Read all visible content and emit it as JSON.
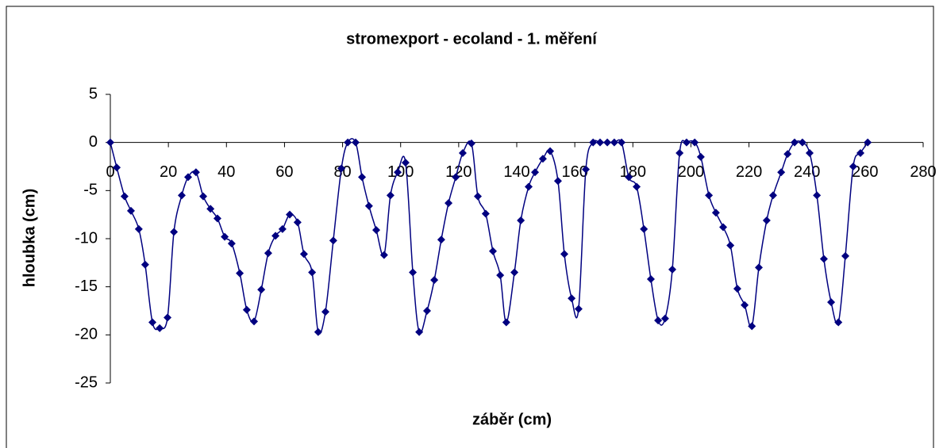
{
  "chart_data": {
    "type": "line",
    "title": "stromexport - ecoland - 1. měření",
    "x_label": "záběr (cm)",
    "y_label": "hloubka (cm)",
    "xlim": [
      0,
      280
    ],
    "xticks": [
      0,
      20,
      40,
      60,
      80,
      100,
      120,
      140,
      160,
      180,
      200,
      220,
      240,
      260,
      280
    ],
    "ylim": [
      -25,
      5
    ],
    "yticks": [
      -25,
      -20,
      -15,
      -10,
      -5,
      0,
      5
    ],
    "series": [
      {
        "color": "#000080",
        "x": [
          0,
          2.2,
          4.9,
          7.1,
          9.8,
          12,
          14.5,
          17,
          19.7,
          21.9,
          24.6,
          26.8,
          29.5,
          32,
          34.5,
          36.9,
          39.4,
          41.8,
          44.6,
          47,
          49.5,
          52,
          54.4,
          56.9,
          59.3,
          61.8,
          64.5,
          66.7,
          69.5,
          71.6,
          74.1,
          76.8,
          79.6,
          81.8,
          84.5,
          86.7,
          89.1,
          91.6,
          94.3,
          96.5,
          99,
          101.7,
          104.2,
          106.4,
          109.1,
          111.6,
          114,
          116.5,
          119,
          121.4,
          124.4,
          126.6,
          129.3,
          131.8,
          134.3,
          136.4,
          139.2,
          141.4,
          144.1,
          146.3,
          149,
          151.5,
          154.2,
          156.4,
          158.9,
          161.3,
          163.8,
          166.3,
          168.7,
          171.2,
          173.6,
          176.1,
          178.6,
          181.3,
          183.8,
          186.2,
          188.7,
          191.1,
          193.6,
          196.1,
          198.5,
          201.3,
          203.4,
          206.2,
          208.6,
          211.1,
          213.6,
          216,
          218.5,
          221,
          223.4,
          226.1,
          228.3,
          231.1,
          233.3,
          235.7,
          238.4,
          240.9,
          243.4,
          245.8,
          248.3,
          250.8,
          253.2,
          255.9,
          258.4,
          260.9
        ],
        "values": [
          0,
          -2.6,
          -5.6,
          -7.1,
          -9.0,
          -12.7,
          -18.7,
          -19.3,
          -18.2,
          -9.3,
          -5.5,
          -3.6,
          -3.1,
          -5.6,
          -6.9,
          -7.9,
          -9.8,
          -10.5,
          -13.6,
          -17.4,
          -18.6,
          -15.3,
          -11.5,
          -9.7,
          -9.0,
          -7.5,
          -8.3,
          -11.6,
          -13.5,
          -19.7,
          -17.6,
          -10.2,
          -2.7,
          0,
          0,
          -3.6,
          -6.6,
          -9.1,
          -11.7,
          -5.5,
          -3.1,
          -2.1,
          -13.5,
          -19.7,
          -17.5,
          -14.3,
          -10.1,
          -6.3,
          -3.6,
          -1.1,
          -0.1,
          -5.6,
          -7.4,
          -11.3,
          -13.8,
          -18.7,
          -13.5,
          -8.1,
          -4.6,
          -3.1,
          -1.7,
          -0.9,
          -4.0,
          -11.6,
          -16.2,
          -17.3,
          -2.8,
          0,
          0,
          0,
          0,
          0,
          -3.6,
          -4.6,
          -9.0,
          -14.2,
          -18.5,
          -18.3,
          -13.2,
          -1.1,
          0,
          0,
          -1.5,
          -5.5,
          -7.3,
          -8.8,
          -10.7,
          -15.2,
          -16.9,
          -19.1,
          -13.0,
          -8.1,
          -5.5,
          -3.1,
          -1.2,
          0,
          0,
          -1.1,
          -5.5,
          -12.1,
          -16.6,
          -18.7,
          -11.8,
          -2.5,
          -1.1,
          0
        ]
      }
    ]
  }
}
